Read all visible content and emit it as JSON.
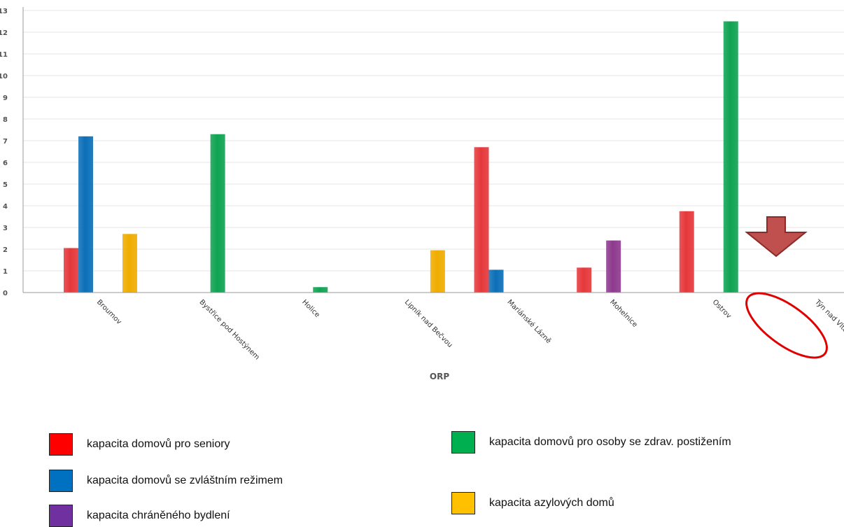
{
  "chart_data": {
    "type": "bar",
    "xlabel": "ORP",
    "ylim": [
      0,
      13
    ],
    "yticks": [
      "0",
      "1",
      "2",
      "3",
      "4",
      "5",
      "6",
      "7",
      "8",
      "9",
      "10",
      "11",
      "12",
      "13"
    ],
    "categories": [
      "Broumov",
      "Bystřice pod Hostýnem",
      "Holice",
      "Lipník nad Bečvou",
      "Mariánské Lázně",
      "Mohelnice",
      "Ostrov",
      "Týn nad Vltavou"
    ],
    "series": [
      {
        "name": "kapacita domovů pro seniory",
        "color": "#e5383b",
        "values": [
          2.05,
          0,
          0,
          0,
          6.7,
          1.15,
          3.75,
          0
        ]
      },
      {
        "name": "kapacita domovů se zvláštním režimem",
        "color": "#0c6fb8",
        "values": [
          7.2,
          0,
          0,
          0,
          1.05,
          0,
          0,
          0
        ]
      },
      {
        "name": "kapacita chráněného bydlení",
        "color": "#8e3a8e",
        "values": [
          0,
          0,
          0,
          0,
          0,
          2.4,
          0,
          0
        ]
      },
      {
        "name": "kapacita domovů pro osoby se zdrav. postižením",
        "color": "#0fa352",
        "values": [
          0,
          7.3,
          0.25,
          0,
          0,
          0,
          12.5,
          0
        ]
      },
      {
        "name": "kapacita azylových domů",
        "color": "#f0ad00",
        "values": [
          2.7,
          0,
          0,
          1.95,
          0,
          0,
          0,
          0
        ]
      }
    ],
    "grid": true,
    "legend_position": "bottom"
  },
  "legend": {
    "items": [
      {
        "label": "kapacita domovů pro seniory",
        "color": "#ff0000"
      },
      {
        "label": "kapacita domovů se zvláštním režimem",
        "color": "#0070c0"
      },
      {
        "label": "kapacita chráněného bydlení",
        "color": "#7030a0"
      },
      {
        "label": "kapacita domovů pro osoby se zdrav. postižením",
        "color": "#00b050"
      },
      {
        "label": "kapacita azylových domů",
        "color": "#ffc000"
      }
    ]
  },
  "annotations": {
    "arrow_color": "#c0504d",
    "ellipse_color": "#e00000"
  }
}
